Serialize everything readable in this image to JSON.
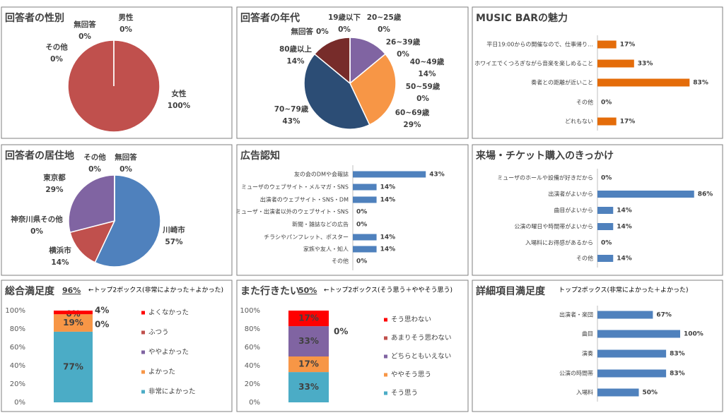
{
  "chart_data": [
    {
      "type": "pie",
      "title": "回答者の性別",
      "categories": [
        "男性",
        "女性",
        "その他",
        "無回答"
      ],
      "values": [
        0,
        100,
        0,
        0
      ],
      "value_labels": [
        "0%",
        "100%",
        "0%",
        "0%"
      ],
      "colors": [
        "#4f81bd",
        "#c0504d",
        "#9bbb59",
        "#7f7f7f"
      ]
    },
    {
      "type": "pie",
      "title": "回答者の年代",
      "categories": [
        "19歳以下",
        "20~25歳",
        "26~39歳",
        "40~49歳",
        "50~59歳",
        "60~69歳",
        "70~79歳",
        "80歳以上",
        "無回答"
      ],
      "values": [
        0,
        0,
        0,
        14,
        0,
        29,
        43,
        14,
        0
      ],
      "value_labels": [
        "0%",
        "0%",
        "0%",
        "14%",
        "0%",
        "29%",
        "43%",
        "14%",
        "0%"
      ],
      "colors": [
        "#4f81bd",
        "#c0504d",
        "#9bbb59",
        "#8064a2",
        "#4bacc6",
        "#f79646",
        "#2c4d75",
        "#772c2a",
        "#7f7f7f"
      ]
    },
    {
      "type": "hbar",
      "title": "MUSIC BARの魅力",
      "categories": [
        "平日19:00からの開催なので、仕事帰り…",
        "ホワイエでくつろぎながら音楽を楽しめること",
        "奏者との距離が近いこと",
        "その他",
        "どれもない"
      ],
      "values": [
        17,
        33,
        83,
        0,
        17
      ],
      "value_labels": [
        "17%",
        "33%",
        "83%",
        "0%",
        "17%"
      ],
      "color": "#e46c0a",
      "xlim": [
        0,
        100
      ]
    },
    {
      "type": "pie",
      "title": "回答者の居住地",
      "categories": [
        "川崎市",
        "横浜市",
        "神奈川県その他",
        "東京都",
        "その他",
        "無回答"
      ],
      "values": [
        57,
        14,
        0,
        29,
        0,
        0
      ],
      "value_labels": [
        "57%",
        "14%",
        "0%",
        "29%",
        "0%",
        "0%"
      ],
      "colors": [
        "#4f81bd",
        "#c0504d",
        "#9bbb59",
        "#8064a2",
        "#4bacc6",
        "#7f7f7f"
      ]
    },
    {
      "type": "hbar",
      "title": "広告認知",
      "categories": [
        "友の会のDMや会報誌",
        "ミューザのウェブサイト・メルマガ・SNS",
        "出演者のウェブサイト・SNS・DM",
        "ミューザ・出演者以外のウェブサイト・SNS",
        "新聞・雑誌などの広告",
        "チラシやパンフレット、ポスター",
        "家族や友人・知人",
        "その他"
      ],
      "values": [
        43,
        14,
        14,
        0,
        0,
        14,
        14,
        0
      ],
      "value_labels": [
        "43%",
        "14%",
        "14%",
        "0%",
        "0%",
        "14%",
        "14%",
        "0%"
      ],
      "color": "#4f81bd",
      "xlim": [
        0,
        50
      ]
    },
    {
      "type": "hbar",
      "title": "来場・チケット購入のきっかけ",
      "categories": [
        "ミューザのホールや設備が好きだから",
        "出演者がよいから",
        "曲目がよいから",
        "公演の曜日や時間帯がよいから",
        "入場料にお得感があるから",
        "その他"
      ],
      "values": [
        0,
        86,
        14,
        14,
        0,
        14
      ],
      "value_labels": [
        "0%",
        "86%",
        "14%",
        "14%",
        "0%",
        "14%"
      ],
      "color": "#4f81bd",
      "xlim": [
        0,
        100
      ]
    },
    {
      "type": "stacked",
      "title": "総合満足度",
      "annotation": "96%",
      "note": "←トップ2ボックス(非常によかった＋よかった)",
      "series": [
        {
          "name": "非常によかった",
          "color": "#4bacc6",
          "values": [
            77
          ],
          "value_labels": [
            "77%"
          ]
        },
        {
          "name": "よかった",
          "color": "#f79646",
          "values": [
            19
          ],
          "value_labels": [
            "19%"
          ]
        },
        {
          "name": "ややよかった",
          "color": "#8064a2",
          "values": [
            0
          ],
          "value_labels": [
            "0%"
          ]
        },
        {
          "name": "ふつう",
          "color": "#c0504d",
          "values": [
            0
          ],
          "value_labels": [
            "0%"
          ]
        },
        {
          "name": "よくなかった",
          "color": "#ff0000",
          "values": [
            4
          ],
          "value_labels": [
            "4%"
          ]
        }
      ],
      "ylim": [
        0,
        100
      ],
      "yticks": [
        {
          "value": 0,
          "label": "0%"
        },
        {
          "value": 20,
          "label": "20%"
        },
        {
          "value": 40,
          "label": "40%"
        },
        {
          "value": 60,
          "label": "60%"
        },
        {
          "value": 80,
          "label": "80%"
        },
        {
          "value": 100,
          "label": "100%"
        }
      ]
    },
    {
      "type": "stacked",
      "title": "また行きたい",
      "annotation": "50%",
      "note": "←トップ2ボックス(そう思う＋ややそう思う)",
      "series": [
        {
          "name": "そう思う",
          "color": "#4bacc6",
          "values": [
            33
          ],
          "value_labels": [
            "33%"
          ]
        },
        {
          "name": "ややそう思う",
          "color": "#f79646",
          "values": [
            17
          ],
          "value_labels": [
            "17%"
          ]
        },
        {
          "name": "どちらともいえない",
          "color": "#8064a2",
          "values": [
            33
          ],
          "value_labels": [
            "33%"
          ]
        },
        {
          "name": "あまりそう思わない",
          "color": "#c0504d",
          "values": [
            0
          ],
          "value_labels": [
            "0%"
          ]
        },
        {
          "name": "そう思わない",
          "color": "#ff0000",
          "values": [
            17
          ],
          "value_labels": [
            "17%"
          ]
        }
      ],
      "ylim": [
        0,
        100
      ],
      "yticks": [
        {
          "value": 0,
          "label": "0%"
        },
        {
          "value": 20,
          "label": "20%"
        },
        {
          "value": 40,
          "label": "40%"
        },
        {
          "value": 60,
          "label": "60%"
        },
        {
          "value": 80,
          "label": "80%"
        },
        {
          "value": 100,
          "label": "100%"
        }
      ]
    },
    {
      "type": "hbar",
      "title": "詳細項目満足度",
      "note": "トップ2ボックス(非常によかった＋よかった)",
      "categories": [
        "出演者・楽団",
        "曲目",
        "演奏",
        "公演の時間帯",
        "入場料"
      ],
      "values": [
        67,
        100,
        83,
        83,
        50
      ],
      "value_labels": [
        "67%",
        "100%",
        "83%",
        "83%",
        "50%"
      ],
      "color": "#4f81bd",
      "xlim": [
        0,
        100
      ]
    }
  ]
}
